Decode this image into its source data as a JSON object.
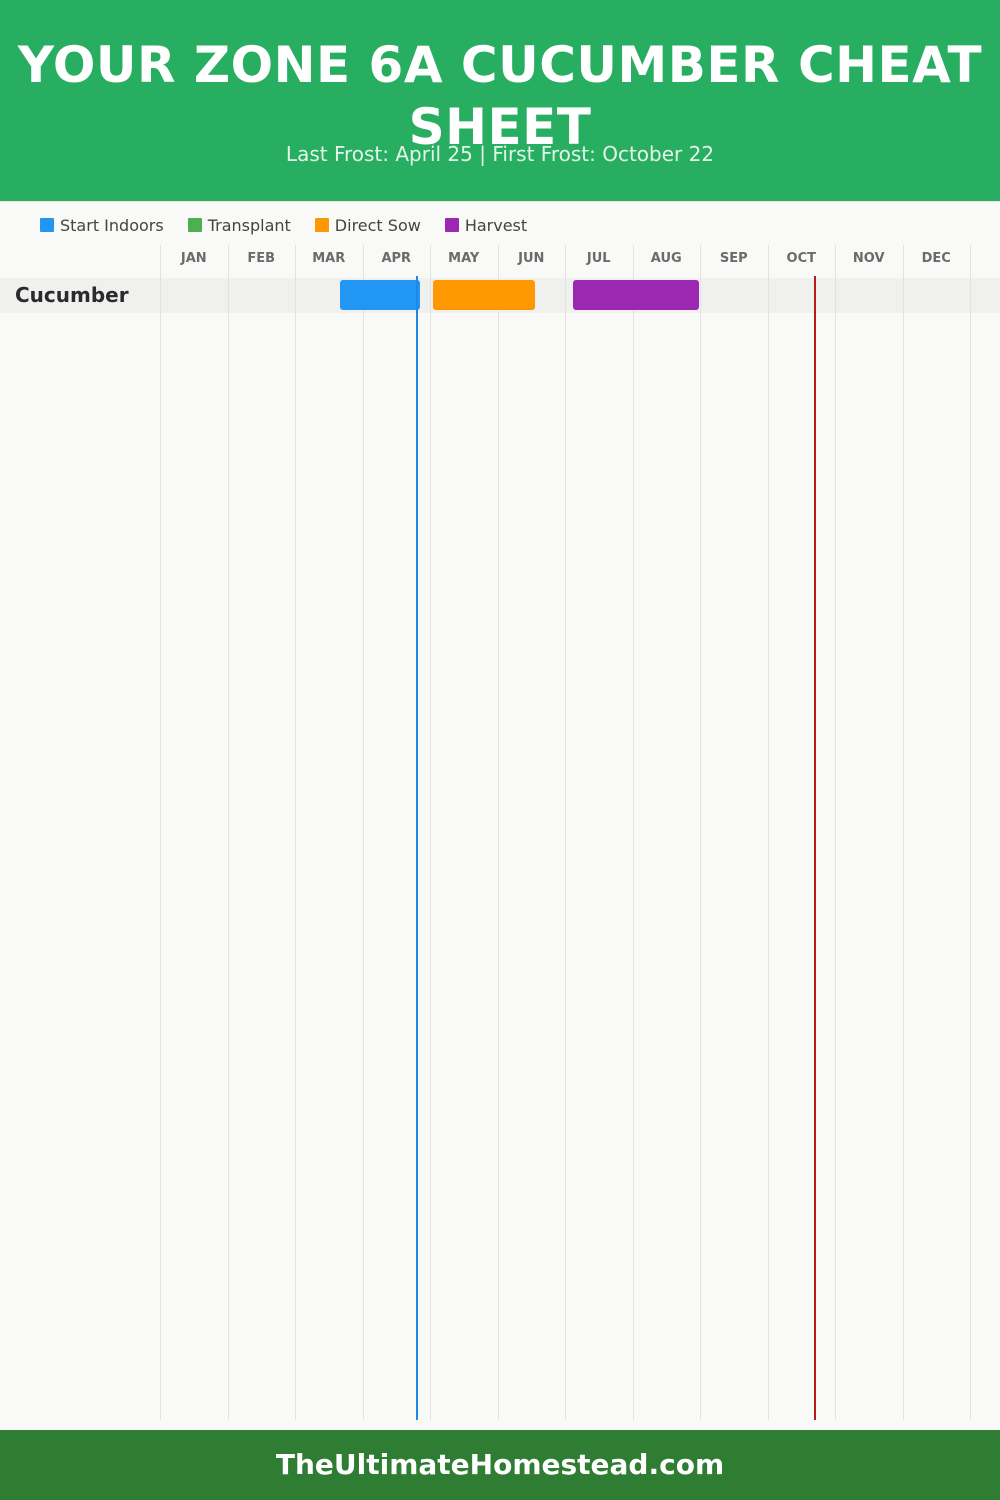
{
  "header": {
    "title": "YOUR ZONE 6A CUCUMBER CHEAT SHEET",
    "subtitle": "Last Frost: April 25 | First Frost: October 22"
  },
  "footer": {
    "text": "TheUltimateHomestead.com"
  },
  "colors": {
    "header_bg": "#27ae60",
    "footer_bg": "#2e7d32",
    "start_indoors": "#2196f3",
    "transplant": "#4caf50",
    "direct_sow": "#ff9800",
    "harvest": "#9c27b0",
    "last_frost": "#1e88e5",
    "first_frost": "#b71c1c"
  },
  "legend": [
    {
      "label": "Start Indoors",
      "color": "#2196f3"
    },
    {
      "label": "Transplant",
      "color": "#4caf50"
    },
    {
      "label": "Direct Sow",
      "color": "#ff9800"
    },
    {
      "label": "Harvest",
      "color": "#9c27b0"
    }
  ],
  "chart_data": {
    "type": "gantt",
    "x_unit": "month of year (1 = start of Jan, 13 = end of Dec)",
    "months": [
      "JAN",
      "FEB",
      "MAR",
      "APR",
      "MAY",
      "JUN",
      "JUL",
      "AUG",
      "SEP",
      "OCT",
      "NOV",
      "DEC"
    ],
    "rows": [
      {
        "label": "Cucumber",
        "tasks": [
          {
            "activity": "Start Indoors",
            "start": 3.67,
            "end": 4.85,
            "color": "#2196f3"
          },
          {
            "activity": "Direct Sow",
            "start": 5.05,
            "end": 6.55,
            "color": "#ff9800"
          },
          {
            "activity": "Harvest",
            "start": 7.12,
            "end": 8.98,
            "color": "#9c27b0"
          }
        ]
      }
    ],
    "frost_lines": [
      {
        "name": "Last Frost",
        "date": "April 25",
        "x": 4.8,
        "color": "#1e88e5"
      },
      {
        "name": "First Frost",
        "date": "October 22",
        "x": 10.7,
        "color": "#b71c1c"
      }
    ],
    "grid": true
  }
}
